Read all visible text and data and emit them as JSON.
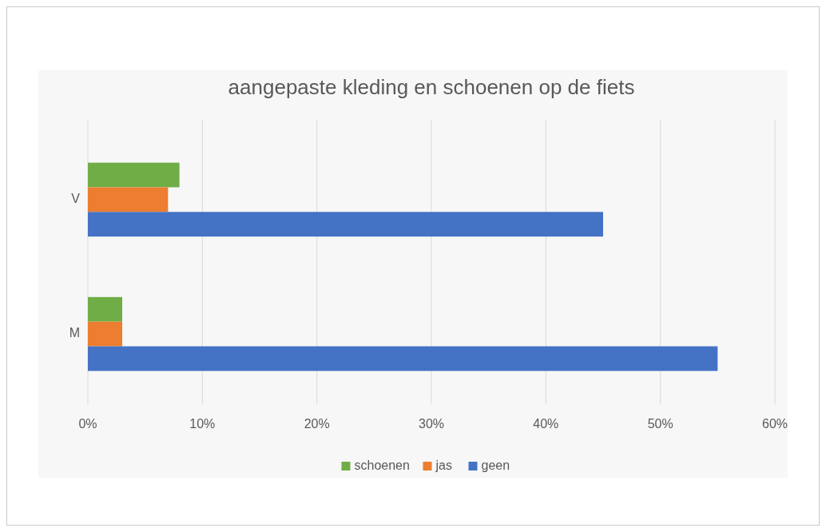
{
  "chart_data": {
    "type": "bar",
    "orientation": "horizontal",
    "title": "aangepaste kleding en schoenen op de fiets",
    "categories": [
      "V",
      "M"
    ],
    "series": [
      {
        "name": "schoenen",
        "color": "#70ad47",
        "values": [
          8,
          3
        ]
      },
      {
        "name": "jas",
        "color": "#ed7d31",
        "values": [
          7,
          3
        ]
      },
      {
        "name": "geen",
        "color": "#4472c4",
        "values": [
          45,
          55
        ]
      }
    ],
    "xlim": [
      0,
      60
    ],
    "xticks": [
      {
        "value": 0,
        "label": "0%"
      },
      {
        "value": 10,
        "label": "10%"
      },
      {
        "value": 20,
        "label": "20%"
      },
      {
        "value": 30,
        "label": "30%"
      },
      {
        "value": 40,
        "label": "40%"
      },
      {
        "value": 50,
        "label": "50%"
      },
      {
        "value": 60,
        "label": "60%"
      }
    ],
    "grid": "x",
    "legend": "bottom"
  }
}
